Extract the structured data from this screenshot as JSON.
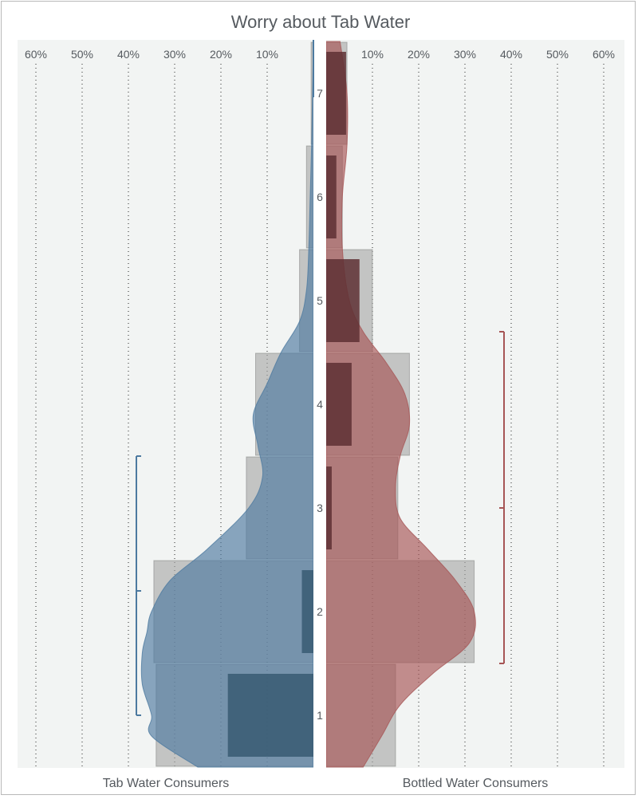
{
  "chart_data": {
    "type": "bar",
    "title": "Worry about Tab Water",
    "categories": [
      "1",
      "2",
      "3",
      "4",
      "5",
      "6",
      "7"
    ],
    "tick_labels": [
      "60%",
      "50%",
      "40%",
      "30%",
      "20%",
      "10%"
    ],
    "tick_labels_right": [
      "10%",
      "20%",
      "30%",
      "40%",
      "50%",
      "60%"
    ],
    "xlim": [
      0,
      60
    ],
    "grid": true,
    "series": [
      {
        "name": "Tab Water Consumers",
        "side": "left",
        "color": "#4d7aa0",
        "bars": [
          34,
          34.5,
          14.5,
          12.5,
          3,
          1.5,
          0.5
        ],
        "inner_bars": [
          18.5,
          2.5,
          0,
          0,
          0,
          0,
          0
        ],
        "density": [
          [
            0.5,
            25
          ],
          [
            0.8,
            35
          ],
          [
            1.0,
            35
          ],
          [
            1.3,
            37
          ],
          [
            1.6,
            37
          ],
          [
            1.8,
            36
          ],
          [
            2.0,
            35
          ],
          [
            2.3,
            31
          ],
          [
            2.6,
            23
          ],
          [
            3.0,
            14
          ],
          [
            3.3,
            11
          ],
          [
            3.6,
            12
          ],
          [
            3.9,
            13
          ],
          [
            4.2,
            10
          ],
          [
            4.5,
            7
          ],
          [
            4.8,
            3
          ],
          [
            5.1,
            1.5
          ],
          [
            5.5,
            1
          ],
          [
            6.0,
            0.7
          ],
          [
            6.5,
            0.4
          ],
          [
            7.0,
            0.2
          ],
          [
            7.5,
            0
          ]
        ],
        "mean": 2.2,
        "range": [
          1.0,
          3.5
        ]
      },
      {
        "name": "Bottled Water Consumers",
        "side": "right",
        "color": "#a65555",
        "bars": [
          15,
          32,
          15.5,
          18,
          10,
          3.5,
          4.5
        ],
        "inner_bars": [
          0,
          0,
          1.2,
          5.5,
          7.2,
          2.2,
          4.3
        ],
        "density": [
          [
            0.5,
            8
          ],
          [
            0.8,
            12
          ],
          [
            1.1,
            16
          ],
          [
            1.4,
            23
          ],
          [
            1.7,
            31
          ],
          [
            2.0,
            32
          ],
          [
            2.3,
            28
          ],
          [
            2.6,
            22
          ],
          [
            2.9,
            16
          ],
          [
            3.2,
            15
          ],
          [
            3.5,
            16
          ],
          [
            3.8,
            18
          ],
          [
            4.1,
            17
          ],
          [
            4.4,
            13
          ],
          [
            4.7,
            8
          ],
          [
            5.0,
            5
          ],
          [
            5.5,
            3.5
          ],
          [
            6.0,
            3.5
          ],
          [
            6.5,
            4.5
          ],
          [
            7.0,
            4.5
          ],
          [
            7.5,
            3
          ]
        ],
        "mean": 3.0,
        "range": [
          1.5,
          4.7
        ]
      }
    ]
  },
  "colors": {
    "plot_background": "#f2f4f3",
    "gray_bar": "#a3a3a3",
    "left_dark": "#385a72",
    "right_dark": "#5e3034"
  }
}
